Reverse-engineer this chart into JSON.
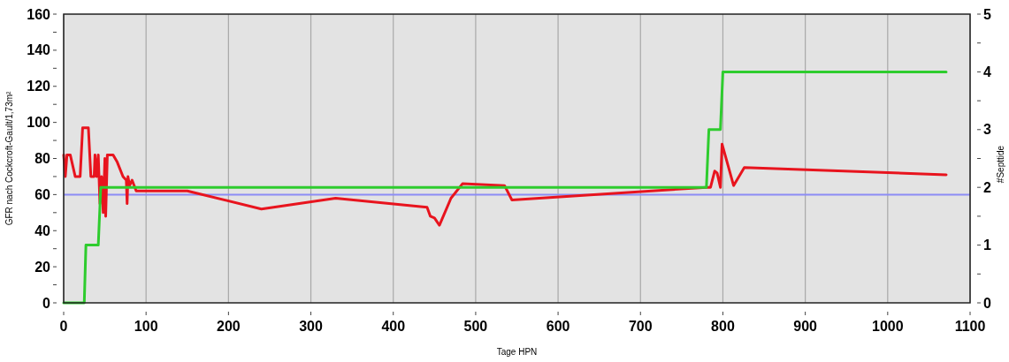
{
  "chart_data": {
    "type": "line",
    "xlabel": "Tage HPN",
    "ylabel": "GFR nach Cockcroft-Gault/1,73m²",
    "y2label": "#Septtide",
    "xlim": [
      0,
      1100
    ],
    "xticks": [
      0,
      100,
      200,
      300,
      400,
      500,
      600,
      700,
      800,
      900,
      1000,
      1100
    ],
    "ylim": [
      0,
      160
    ],
    "yticks": [
      0,
      {
        "value": 10,
        "label": null
      },
      20,
      {
        "value": 30,
        "label": null
      },
      40,
      {
        "value": 50,
        "label": null
      },
      60,
      {
        "value": 70,
        "label": null
      },
      80,
      {
        "value": 90,
        "label": null
      },
      100,
      {
        "value": 110,
        "label": null
      },
      120,
      {
        "value": 130,
        "label": null
      },
      140,
      {
        "value": 150,
        "label": null
      },
      160
    ],
    "y2lim": [
      0,
      5
    ],
    "y2ticks": [
      0,
      {
        "value": 0.5,
        "label": null
      },
      1,
      {
        "value": 1.5,
        "label": null
      },
      2,
      {
        "value": 2.5,
        "label": null
      },
      3,
      {
        "value": 3.5,
        "label": null
      },
      4,
      {
        "value": 4.5,
        "label": null
      },
      5
    ],
    "grid": "x",
    "line_style": "solid",
    "ref_lines": [
      {
        "axis": "y",
        "value": 60,
        "color": "#8c8cf5"
      }
    ],
    "series": [
      {
        "color": "#e8141e",
        "x": [
          0,
          2,
          4,
          8,
          14,
          20,
          23,
          30,
          33,
          37,
          38,
          40,
          42,
          44,
          46,
          48,
          50,
          51,
          53,
          60,
          65,
          72,
          76,
          77,
          78,
          80,
          83,
          88,
          100,
          150,
          240,
          330,
          441,
          445,
          450,
          456,
          470,
          484,
          535,
          544,
          780,
          785,
          790,
          793,
          797,
          799,
          813,
          826,
          1071
        ],
        "values": [
          82,
          70,
          82,
          82,
          70,
          70,
          97,
          97,
          70,
          70,
          82,
          70,
          82,
          55,
          70,
          50,
          80,
          48,
          82,
          82,
          78,
          70,
          68,
          55,
          70,
          65,
          68,
          62,
          62,
          62,
          52,
          58,
          53,
          48,
          47,
          43,
          58,
          66,
          65,
          57,
          64,
          64,
          73,
          72,
          64,
          88,
          65,
          75,
          71
        ]
      },
      {
        "color": "#2ecc2e",
        "axis": "y2",
        "x": [
          0,
          25,
          27,
          42,
          45,
          150,
          240,
          330,
          450,
          540,
          780,
          783,
          797,
          800,
          810,
          825,
          1071
        ],
        "values": [
          0,
          0,
          1,
          1,
          2,
          2,
          2,
          2,
          2,
          2,
          2,
          3,
          3,
          4,
          4,
          4,
          4
        ]
      }
    ]
  }
}
